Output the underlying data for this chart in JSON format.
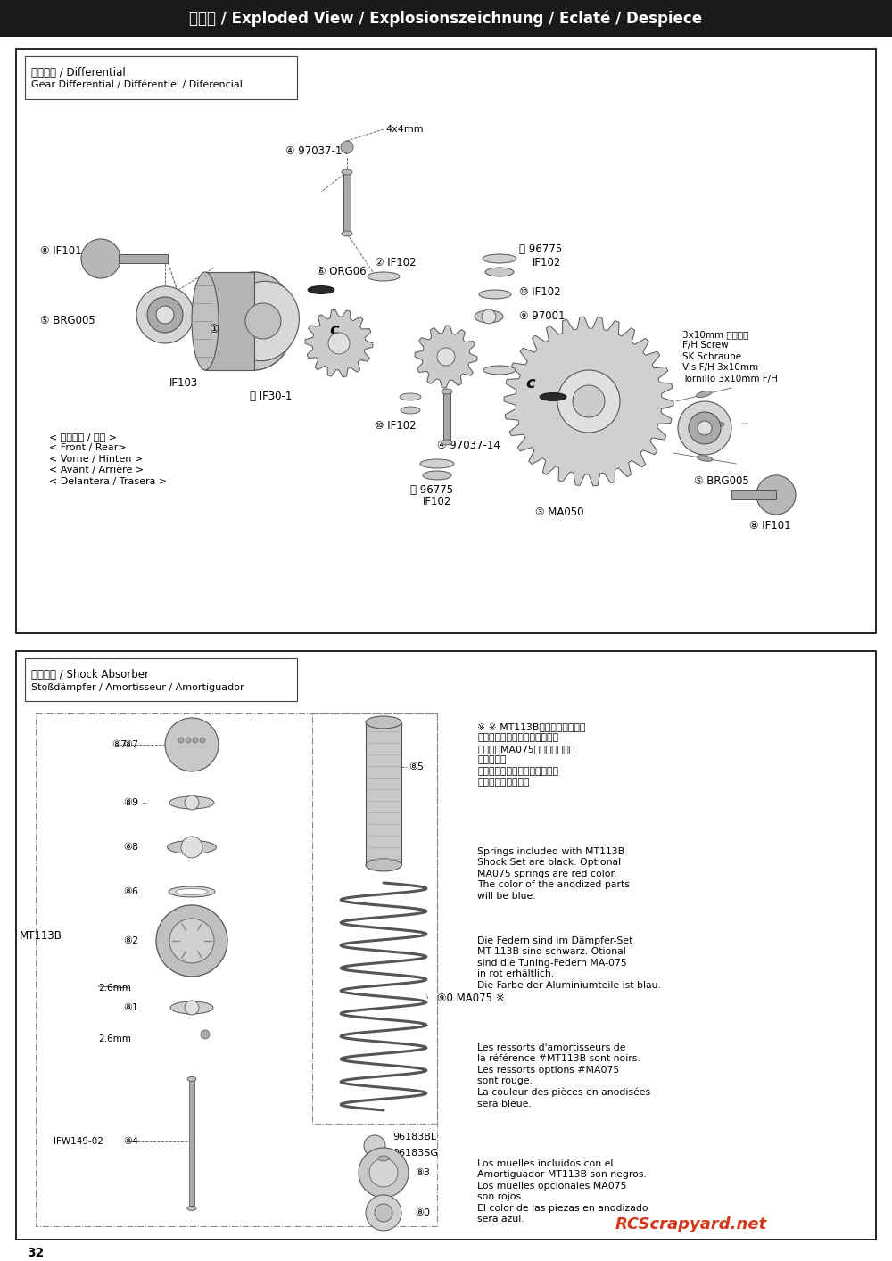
{
  "page_title": "分解図 / Exploded View / Explosionszeichnung / Eclaté / Despiece",
  "page_number": "32",
  "page_bg": "#ffffff",
  "header_bg": "#1a1a1a",
  "header_text_color": "#ffffff",
  "section1": {
    "label_line1": "デフギヤ / Differential",
    "label_line2": "Gear Differential / Différentiel / Diferencial",
    "note_4x4mm": "4x4mm",
    "note_front_rear": "< フロント / リヤ >\n< Front / Rear>\n< Vorne / Hinten >\n< Avant / Arrière >\n< Delantera / Trasera >",
    "note_screw": "3x10mm サラビス\nF/H Screw\nSK Schraube\nVis F/H 3x10mm\nTornillo 3x10mm F/H"
  },
  "section2": {
    "label_line1": "ダンパー / Shock Absorber",
    "label_line2": "Stoßdämpfer / Amortisseur / Amortiguador",
    "mt113b": "MT113B",
    "dim_2_6mm": "2.6mm",
    "ifw_label": "IFW149-02",
    "part_96183BL": "96183BL",
    "part_96183SG": "96183SG",
    "note_jp": "※ MT113Bダンパーセットに\n含まれるスプリングは黒です。\n単品売（MA075）のスプリング\nは赤です。\nまた、アルマイトパーツの色は\nブルーとなります。",
    "note_en": "Springs included with MT113B\nShock Set are black. Optional\nMA075 springs are red color.\nThe color of the anodized parts\nwill be blue.",
    "note_de": "Die Federn sind im Dämpfer-Set\nMT-113B sind schwarz. Otional\nsind die Tuning-Federn MA-075\nin rot erhältlich.\nDie Farbe der Aluminiumteile ist blau.",
    "note_fr": "Les ressorts d'amortisseurs de\nla référence #MT113B sont noirs.\nLes ressorts options #MA075\nsont rouge.\nLa couleur des pièces en anodisées\nsera bleue.",
    "note_es": "Los muelles incluidos con el\nAmortiguador MT113B son negros.\nLos muelles opcionales MA075\nson rojos.\nEl color de las piezas en anodizado\nsera azul.",
    "watermark": "RCScrapyard.net"
  }
}
